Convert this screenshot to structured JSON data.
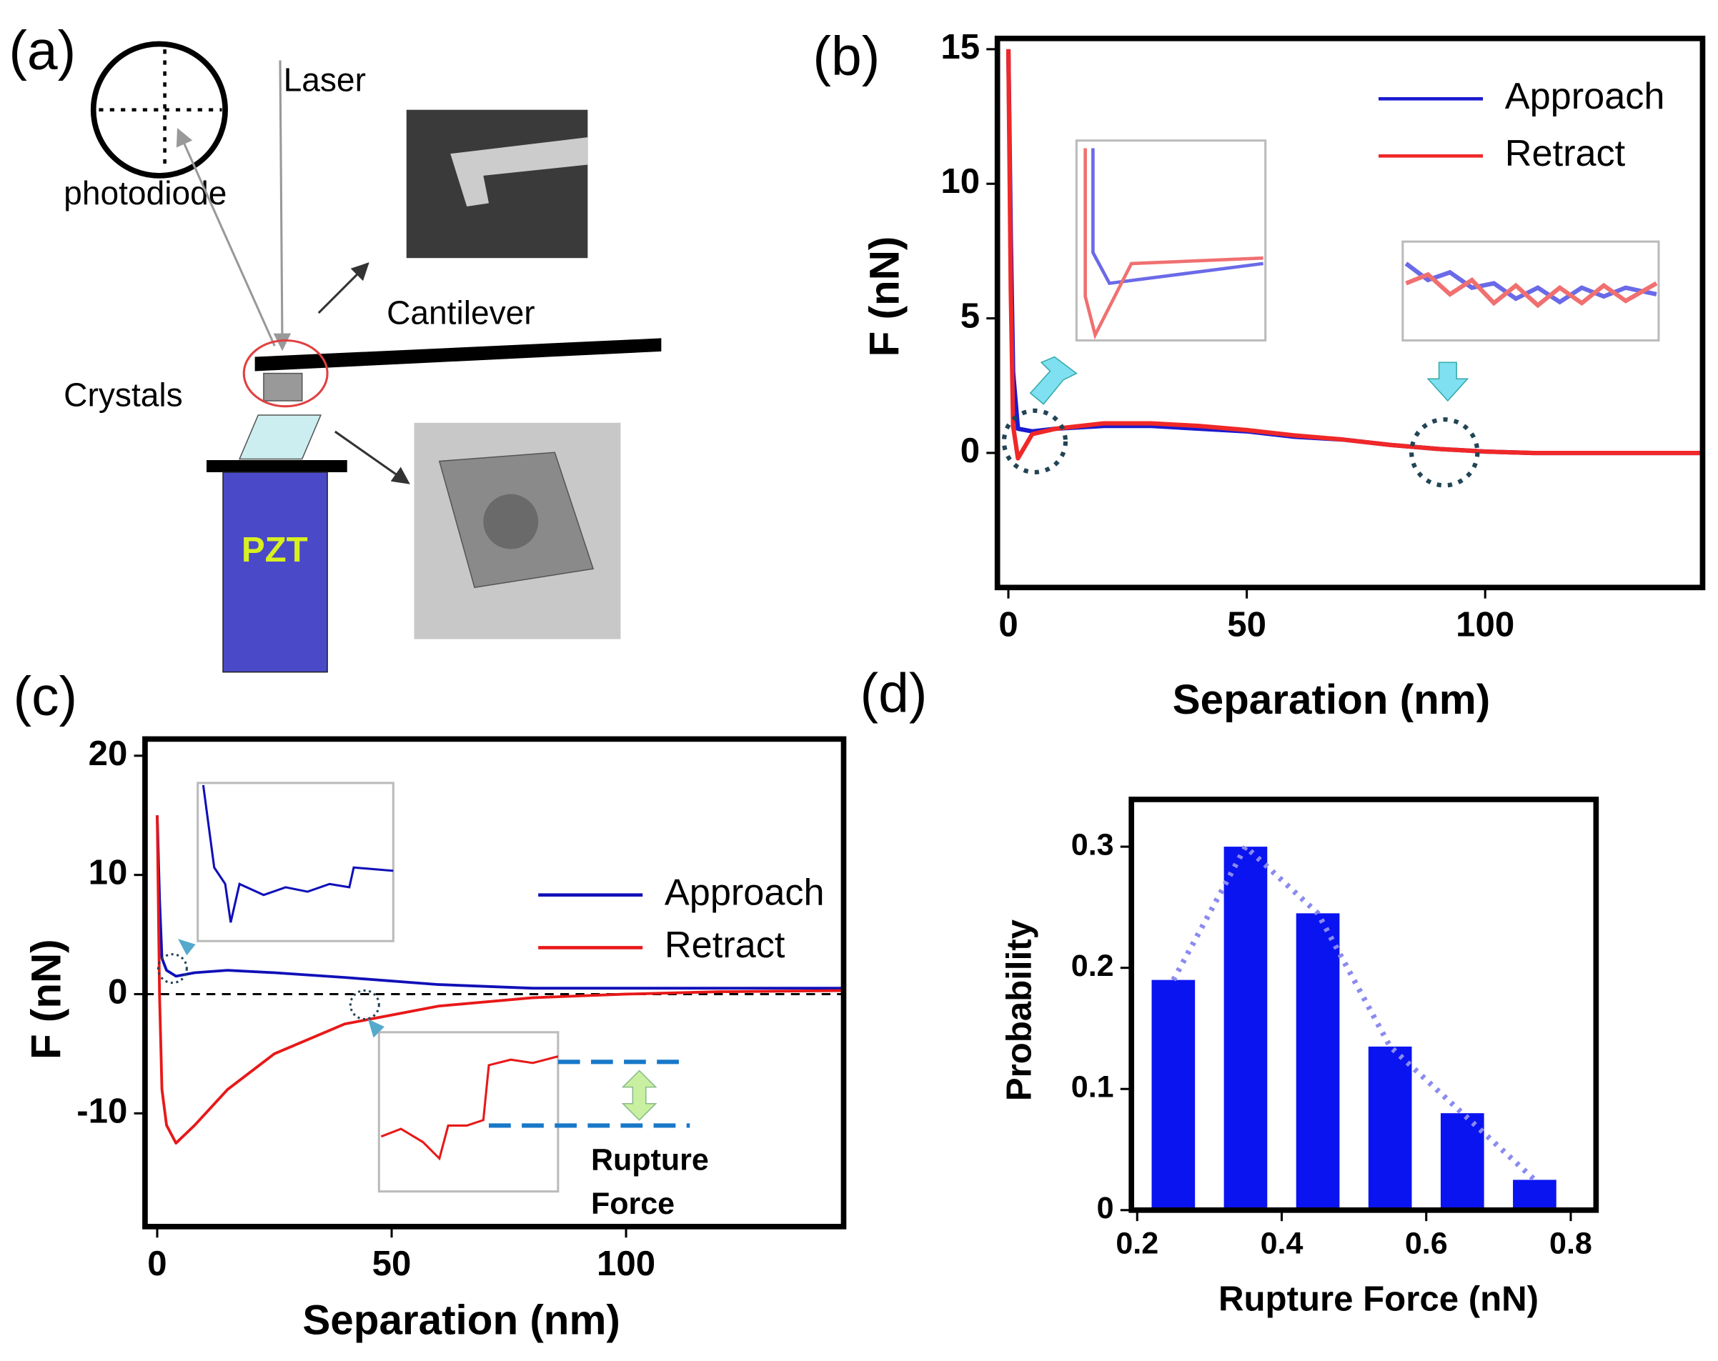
{
  "diagram": {
    "panel": "(a)",
    "labels": {
      "laser": "Laser",
      "photodiode": "photodiode",
      "cantilever": "Cantilever",
      "crystals": "Crystals",
      "pzt": "PZT"
    }
  },
  "chart_data": [
    {
      "type": "line",
      "panel": "(b)",
      "xlabel": "Separation (nm)",
      "ylabel": "F (nN)",
      "x": [
        0,
        0.5,
        1,
        2,
        5,
        10,
        20,
        30,
        40,
        50,
        60,
        70,
        80,
        90,
        100,
        110,
        120,
        130,
        140,
        145
      ],
      "series": [
        {
          "name": "Approach",
          "color": "#1a1ad0",
          "values": [
            15,
            8,
            3,
            0.9,
            0.8,
            0.9,
            1.0,
            1.0,
            0.9,
            0.8,
            0.6,
            0.5,
            0.3,
            0.15,
            0.05,
            0,
            0,
            0,
            0,
            0
          ]
        },
        {
          "name": "Retract",
          "color": "#f02828",
          "values": [
            15,
            6,
            1,
            -0.2,
            0.7,
            0.9,
            1.1,
            1.1,
            1.0,
            0.85,
            0.65,
            0.5,
            0.3,
            0.15,
            0.05,
            0,
            0,
            0,
            0,
            0
          ]
        }
      ],
      "xlim": [
        -2.3,
        145.6
      ],
      "ylim": [
        -5,
        15.4
      ],
      "xticks": [
        0,
        50,
        100
      ],
      "yticks": [
        0,
        5,
        10,
        15
      ],
      "legend": "upper right"
    },
    {
      "type": "line",
      "panel": "(c)",
      "xlabel": "Separation (nm)",
      "ylabel": "F (nN)",
      "x": [
        0,
        0.5,
        1,
        2,
        4,
        8,
        15,
        25,
        40,
        60,
        80,
        100,
        120,
        146
      ],
      "series": [
        {
          "name": "Approach",
          "color": "#1010b8",
          "values": [
            15,
            8,
            3,
            2,
            1.5,
            1.8,
            2,
            1.8,
            1.4,
            0.8,
            0.5,
            0.5,
            0.5,
            0.5
          ]
        },
        {
          "name": "Retract",
          "color": "#e81818",
          "values": [
            15,
            0,
            -8,
            -11,
            -12.5,
            -11,
            -8,
            -5,
            -2.5,
            -1,
            -0.3,
            0,
            0.2,
            0.3
          ]
        }
      ],
      "reference_line": 0,
      "annotation_lines": [
        "Rupture",
        "Force"
      ],
      "xlim": [
        -2.6,
        146.4
      ],
      "ylim": [
        -19.5,
        21.4
      ],
      "xticks": [
        0,
        50,
        100
      ],
      "yticks": [
        -10,
        0,
        10,
        20
      ],
      "legend": "center right"
    },
    {
      "type": "bar",
      "panel": "(d)",
      "xlabel": "Rupture Force (nN)",
      "ylabel": "Probability",
      "x": [
        0.25,
        0.35,
        0.45,
        0.55,
        0.65,
        0.75
      ],
      "values": [
        0.19,
        0.3,
        0.245,
        0.135,
        0.08,
        0.025
      ],
      "color": "#0a14f0",
      "xlim": [
        0.192,
        0.835
      ],
      "ylim": [
        0,
        0.339
      ],
      "xticks": [
        0.2,
        0.4,
        0.6,
        0.8
      ],
      "yticks": [
        0,
        0.1,
        0.2,
        0.3
      ]
    }
  ]
}
